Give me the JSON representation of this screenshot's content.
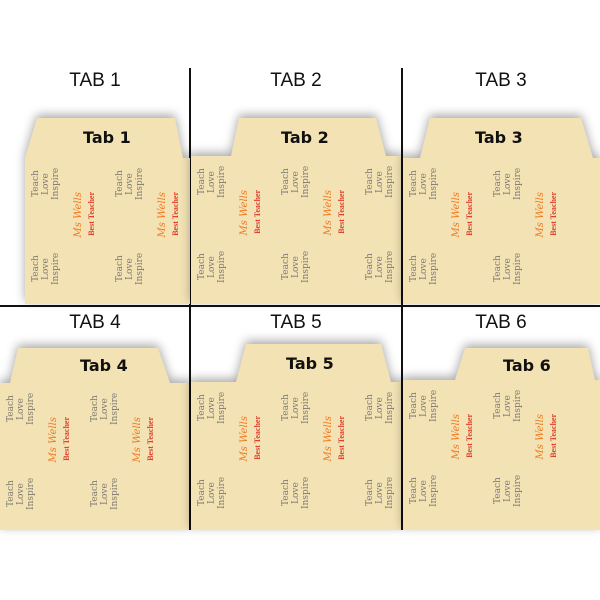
{
  "cells": [
    {
      "label": "TAB 1",
      "tab_text": "Tab 1"
    },
    {
      "label": "TAB 2",
      "tab_text": "Tab 2"
    },
    {
      "label": "TAB 3",
      "tab_text": "Tab 3"
    },
    {
      "label": "TAB 4",
      "tab_text": "Tab 4"
    },
    {
      "label": "TAB 5",
      "tab_text": "Tab 5"
    },
    {
      "label": "TAB 6",
      "tab_text": "Tab 6"
    }
  ],
  "pattern": {
    "motto": "Teach Love Inspire",
    "name": "Ms Wells",
    "title": "Best Teacher"
  },
  "colors": {
    "folder": "#f2e2b4",
    "motto": "#7d7a72",
    "name": "#f07a22",
    "title": "#e0402e"
  }
}
